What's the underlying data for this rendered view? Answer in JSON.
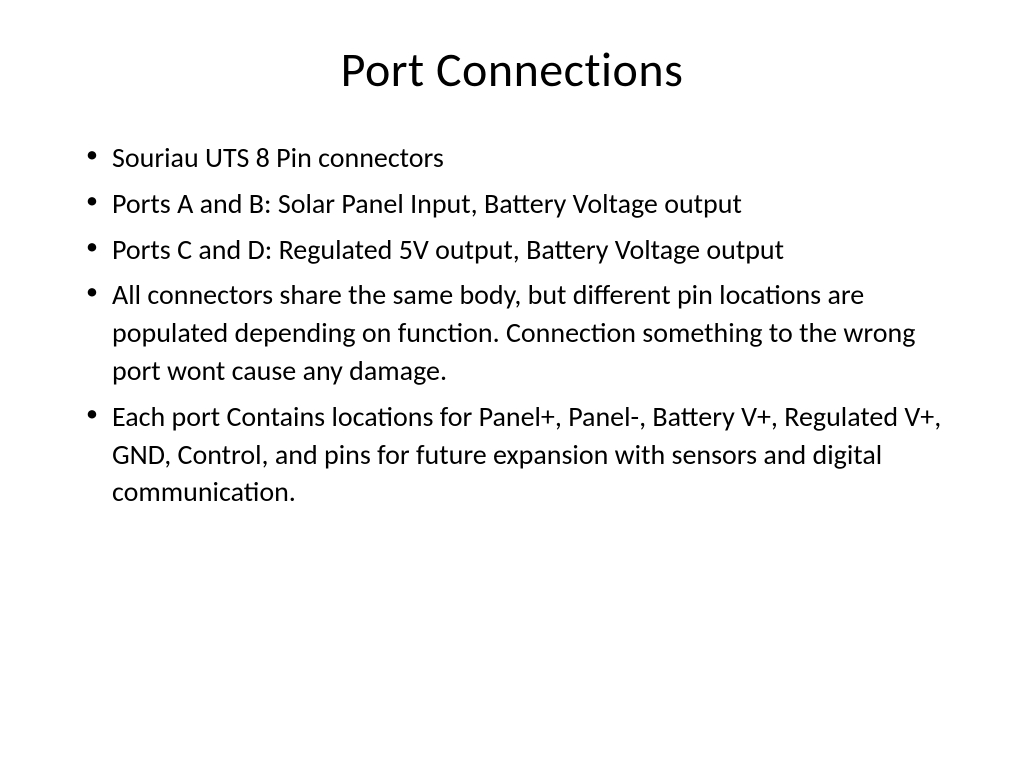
{
  "slide": {
    "title": "Port Connections",
    "bullets": [
      "Souriau UTS 8 Pin connectors",
      "Ports A and B: Solar Panel Input, Battery Voltage output",
      "Ports C and D: Regulated 5V output, Battery Voltage output",
      "All connectors share the same body, but different pin locations are populated depending on function. Connection something to the wrong port wont cause any damage.",
      "Each port Contains locations for Panel+, Panel-, Battery V+, Regulated V+, GND, Control, and pins for future expansion with sensors and digital communication."
    ],
    "title_fontsize": 48,
    "body_fontsize": 28,
    "text_color": "#000000",
    "background_color": "#ffffff"
  }
}
